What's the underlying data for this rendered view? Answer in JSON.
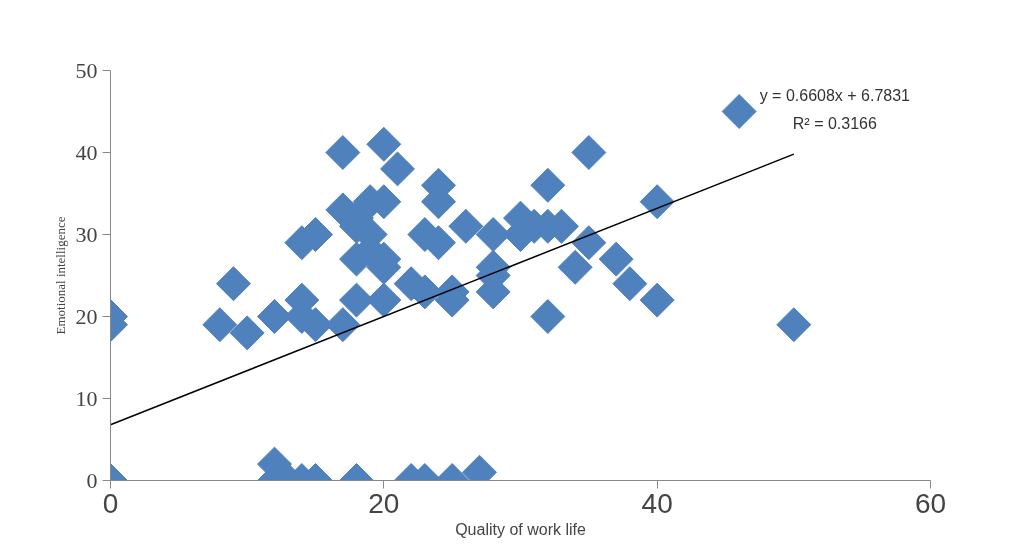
{
  "chart_data": {
    "type": "scatter",
    "xlabel": "Quality of work life",
    "ylabel": "Emotional intelligence",
    "xlim": [
      0,
      60
    ],
    "ylim": [
      0,
      50
    ],
    "xticks": [
      0,
      20,
      40,
      60
    ],
    "yticks": [
      0,
      10,
      20,
      30,
      40,
      50
    ],
    "grid": false,
    "annotations": [
      "y = 0.6608x + 6.7831",
      "R² = 0.3166"
    ],
    "series": [
      {
        "marker": "diamond",
        "color": "#4f81bd",
        "x": [
          0,
          0,
          0,
          8,
          9,
          10,
          12,
          12,
          12,
          13,
          14,
          15,
          14,
          14,
          14,
          15,
          15,
          17,
          17,
          17,
          18,
          18,
          18,
          18,
          18,
          19,
          19,
          19,
          20,
          20,
          20,
          20,
          20,
          21,
          22,
          22,
          23,
          23,
          23,
          24,
          24,
          24,
          25,
          25,
          25,
          26,
          27,
          28,
          28,
          28,
          28,
          30,
          30,
          31,
          32,
          32,
          32,
          33,
          34,
          35,
          35,
          37,
          38,
          40,
          40,
          46,
          50
        ],
        "values": [
          20,
          19,
          0,
          19,
          24,
          18,
          20,
          2,
          0,
          0,
          0,
          0,
          22,
          29,
          20,
          30,
          19,
          40,
          33,
          19,
          31,
          27,
          22,
          32,
          0,
          34,
          30,
          28,
          41,
          34,
          27,
          26,
          22,
          38,
          24,
          0,
          30,
          23,
          0,
          36,
          34,
          29,
          23,
          22,
          0,
          31,
          1,
          30,
          26,
          25,
          23,
          32,
          30,
          31,
          36,
          31,
          20,
          31,
          26,
          40,
          29,
          27,
          24,
          34,
          22,
          45,
          19
        ]
      },
      {
        "type": "line",
        "color": "#000000",
        "x": [
          0,
          50
        ],
        "values": [
          6.8,
          39.8
        ]
      }
    ]
  }
}
